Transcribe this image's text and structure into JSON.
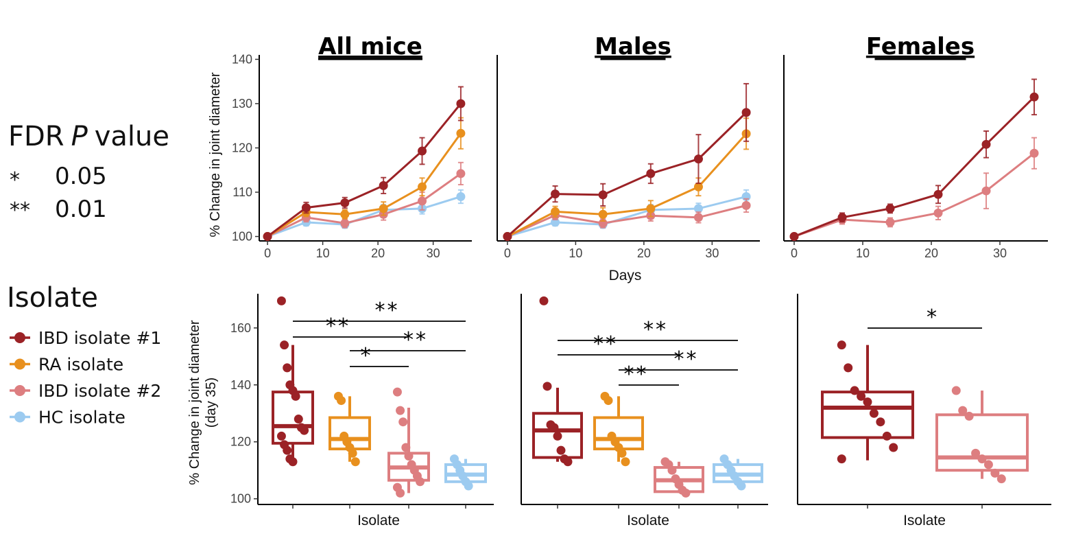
{
  "side_legend": {
    "fdr_title_prefix": "FDR",
    "fdr_title_italic": "P",
    "fdr_title_suffix": "value",
    "fdr_rows": [
      {
        "symbol": "*",
        "value": "0.05"
      },
      {
        "symbol": "**",
        "value": "0.01"
      }
    ],
    "isolate_title": "Isolate"
  },
  "colors": {
    "IBD isolate #1": "#9B2226",
    "RA isolate": "#E8901E",
    "IBD isolate #2": "#DD7E80",
    "HC isolate": "#9CCBF0"
  },
  "chart_data": [
    {
      "id": "line-all-mice",
      "type": "line",
      "title": "All mice",
      "xlabel": "",
      "ylabel": "% Change in joint diameter",
      "xlim": [
        -1.5,
        37
      ],
      "ylim": [
        99,
        141
      ],
      "xticks": [
        0,
        10,
        20,
        30
      ],
      "yticks": [
        100,
        110,
        120,
        130,
        140
      ],
      "series": [
        {
          "name": "IBD isolate #1",
          "x": [
            0,
            7,
            14,
            21,
            28,
            35
          ],
          "y": [
            100,
            106.5,
            107.6,
            111.5,
            119.3,
            130
          ],
          "err": [
            0,
            1.2,
            1.2,
            1.8,
            3.0,
            3.8
          ]
        },
        {
          "name": "RA isolate",
          "x": [
            0,
            7,
            14,
            21,
            28,
            35
          ],
          "y": [
            100,
            105.5,
            105.0,
            106.3,
            111.2,
            123.3
          ],
          "err": [
            0,
            1.0,
            1.0,
            1.5,
            2.0,
            3.5
          ]
        },
        {
          "name": "IBD isolate #2",
          "x": [
            0,
            7,
            14,
            21,
            28,
            35
          ],
          "y": [
            100,
            104.3,
            103.0,
            105.0,
            108.0,
            114.2
          ],
          "err": [
            0,
            1.0,
            1.0,
            1.3,
            2.0,
            2.5
          ]
        },
        {
          "name": "HC isolate",
          "x": [
            0,
            7,
            14,
            21,
            28,
            35
          ],
          "y": [
            100,
            103.2,
            102.7,
            106.0,
            106.3,
            109.0
          ],
          "err": [
            0,
            0.8,
            0.8,
            1.2,
            1.2,
            1.5
          ]
        }
      ]
    },
    {
      "id": "line-males",
      "type": "line",
      "title": "Males",
      "xlabel": "Days",
      "ylabel": "",
      "xlim": [
        -1.5,
        37
      ],
      "ylim": [
        99,
        141
      ],
      "xticks": [
        0,
        10,
        20,
        30
      ],
      "yticks": [],
      "series": [
        {
          "name": "IBD isolate #1",
          "x": [
            0,
            7,
            14,
            21,
            28,
            35
          ],
          "y": [
            100,
            109.6,
            109.4,
            114.2,
            117.5,
            128.0
          ],
          "err": [
            0,
            1.8,
            2.5,
            2.2,
            5.5,
            6.5
          ]
        },
        {
          "name": "RA isolate",
          "x": [
            0,
            7,
            14,
            21,
            28,
            35
          ],
          "y": [
            100,
            105.6,
            105.0,
            106.3,
            111.2,
            123.2
          ],
          "err": [
            0,
            1.2,
            1.5,
            1.8,
            2.0,
            3.5
          ]
        },
        {
          "name": "IBD isolate #2",
          "x": [
            0,
            7,
            14,
            21,
            28,
            35
          ],
          "y": [
            100,
            104.8,
            103.0,
            104.7,
            104.3,
            107.0
          ],
          "err": [
            0,
            1.0,
            1.0,
            1.2,
            1.2,
            1.5
          ]
        },
        {
          "name": "HC isolate",
          "x": [
            0,
            7,
            14,
            21,
            28,
            35
          ],
          "y": [
            100,
            103.2,
            102.7,
            106.0,
            106.3,
            109.0
          ],
          "err": [
            0,
            0.8,
            0.8,
            1.2,
            1.2,
            1.5
          ]
        }
      ]
    },
    {
      "id": "line-females",
      "type": "line",
      "title": "Females",
      "xlabel": "",
      "ylabel": "",
      "xlim": [
        -1.5,
        37
      ],
      "ylim": [
        99,
        141
      ],
      "xticks": [
        0,
        10,
        20,
        30
      ],
      "yticks": [],
      "series": [
        {
          "name": "IBD isolate #1",
          "x": [
            0,
            7,
            14,
            21,
            28,
            35
          ],
          "y": [
            100,
            104.3,
            106.3,
            109.5,
            120.8,
            131.5
          ],
          "err": [
            0,
            1.0,
            1.0,
            2.0,
            3.0,
            4.0
          ]
        },
        {
          "name": "IBD isolate #2",
          "x": [
            0,
            7,
            14,
            21,
            28,
            35
          ],
          "y": [
            100,
            103.8,
            103.2,
            105.3,
            110.3,
            118.8
          ],
          "err": [
            0,
            1.0,
            1.0,
            1.5,
            4.0,
            3.5
          ]
        }
      ]
    },
    {
      "id": "box-all-mice",
      "type": "box",
      "xlabel": "Isolate",
      "ylabel": "% Change in joint diameter (day 35)",
      "ylim": [
        98,
        172
      ],
      "yticks": [
        100,
        120,
        140,
        160
      ],
      "groups": [
        {
          "name": "IBD isolate #1",
          "q1": 119.5,
          "median": 125.5,
          "q3": 137.5,
          "whisker_low": 113,
          "whisker_high": 154,
          "points": [
            169.5,
            154,
            146,
            140,
            138,
            136,
            128,
            125,
            124,
            122,
            119,
            117,
            114,
            113
          ]
        },
        {
          "name": "RA isolate",
          "q1": 117.5,
          "median": 121,
          "q3": 128.5,
          "whisker_low": 113,
          "whisker_high": 136,
          "points": [
            136,
            134.5,
            122,
            120,
            118,
            116,
            113
          ]
        },
        {
          "name": "IBD isolate #2",
          "q1": 106.5,
          "median": 111,
          "q3": 116,
          "whisker_low": 102,
          "whisker_high": 132,
          "points": [
            137.5,
            131,
            127,
            118,
            115,
            112,
            110,
            108,
            106,
            104,
            102
          ]
        },
        {
          "name": "HC isolate",
          "q1": 106,
          "median": 108.5,
          "q3": 112,
          "whisker_low": 104,
          "whisker_high": 114,
          "points": [
            114,
            112,
            110,
            108,
            106,
            104.5
          ]
        }
      ],
      "annotations": [
        {
          "from": 0,
          "to": 3,
          "label": "**"
        },
        {
          "from": 0,
          "to": 2,
          "label": "**"
        },
        {
          "from": 1,
          "to": 3,
          "label": "**"
        },
        {
          "from": 1,
          "to": 2,
          "label": "*"
        }
      ]
    },
    {
      "id": "box-males",
      "type": "box",
      "xlabel": "Isolate",
      "ylabel": "",
      "ylim": [
        98,
        172
      ],
      "yticks": [],
      "groups": [
        {
          "name": "IBD isolate #1",
          "q1": 114.5,
          "median": 124,
          "q3": 130,
          "whisker_low": 113,
          "whisker_high": 139,
          "points": [
            169.5,
            139.5,
            126,
            125,
            122,
            117,
            114,
            113
          ]
        },
        {
          "name": "RA isolate",
          "q1": 117.5,
          "median": 121,
          "q3": 128.5,
          "whisker_low": 113,
          "whisker_high": 136,
          "points": [
            136,
            134.5,
            122,
            120,
            118,
            116,
            113
          ]
        },
        {
          "name": "IBD isolate #2",
          "q1": 102.5,
          "median": 106.5,
          "q3": 111,
          "whisker_low": 102,
          "whisker_high": 113,
          "points": [
            113,
            112,
            110,
            107,
            105,
            103,
            102
          ]
        },
        {
          "name": "HC isolate",
          "q1": 106,
          "median": 108.5,
          "q3": 112,
          "whisker_low": 104,
          "whisker_high": 114,
          "points": [
            114,
            112,
            110,
            108,
            106,
            104.5
          ]
        }
      ],
      "annotations": [
        {
          "from": 0,
          "to": 3,
          "label": "**"
        },
        {
          "from": 0,
          "to": 2,
          "label": "**"
        },
        {
          "from": 1,
          "to": 3,
          "label": "**"
        },
        {
          "from": 1,
          "to": 2,
          "label": "**"
        }
      ]
    },
    {
      "id": "box-females",
      "type": "box",
      "xlabel": "Isolate",
      "ylabel": "",
      "ylim": [
        98,
        172
      ],
      "yticks": [],
      "groups": [
        {
          "name": "IBD isolate #1",
          "q1": 121.5,
          "median": 132,
          "q3": 137.5,
          "whisker_low": 113.5,
          "whisker_high": 154,
          "points": [
            154,
            146,
            138,
            136,
            134,
            130,
            127,
            122,
            118,
            114
          ]
        },
        {
          "name": "IBD isolate #2",
          "q1": 110,
          "median": 114.5,
          "q3": 129.5,
          "whisker_low": 107,
          "whisker_high": 138,
          "points": [
            138,
            131,
            129,
            116,
            114,
            112,
            109,
            107
          ]
        }
      ],
      "annotations": [
        {
          "from": 0,
          "to": 1,
          "label": "*"
        }
      ]
    }
  ]
}
